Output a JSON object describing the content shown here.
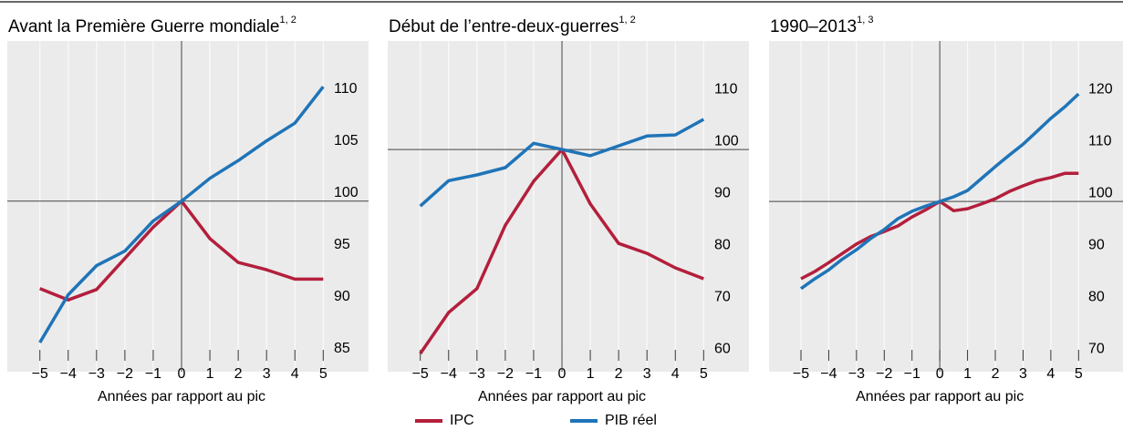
{
  "chart_data": [
    {
      "type": "line",
      "title": "Avant la Première Guerre mondiale",
      "title_note": "1, 2",
      "xlabel": "Années par rapport au pic",
      "x": [
        -5,
        -4,
        -3,
        -2,
        -1,
        0,
        1,
        2,
        3,
        4,
        5
      ],
      "xlim": [
        -6.15,
        6.6
      ],
      "xticks": [
        {
          "value": -5,
          "label": "−5"
        },
        {
          "value": -4,
          "label": "−4"
        },
        {
          "value": -3,
          "label": "−3"
        },
        {
          "value": -2,
          "label": "−2"
        },
        {
          "value": -1,
          "label": "−1"
        },
        0,
        1,
        2,
        3,
        4,
        5
      ],
      "ylim": [
        83.6,
        115.4
      ],
      "yticks": [
        85,
        90,
        95,
        100,
        105,
        110
      ],
      "hline": 100,
      "vline": 0,
      "grid": true,
      "series": [
        {
          "name": "IPC",
          "color": "#b31f3c",
          "values": [
            91.6,
            90.5,
            91.5,
            94.5,
            97.5,
            100,
            96.4,
            94.1,
            93.4,
            92.5,
            92.5
          ]
        },
        {
          "name": "PIB réel",
          "color": "#1f74b8",
          "values": [
            86.4,
            91,
            93.8,
            95.2,
            98.1,
            100,
            102.2,
            103.9,
            105.8,
            107.5,
            111
          ]
        }
      ]
    },
    {
      "type": "line",
      "title": "Début de l’entre-deux-guerres",
      "title_note": "1, 2",
      "xlabel": "Années par rapport au pic",
      "x": [
        -5,
        -4,
        -3,
        -2,
        -1,
        0,
        1,
        2,
        3,
        4,
        5
      ],
      "xlim": [
        -6.15,
        6.6
      ],
      "xticks": [
        {
          "value": -5,
          "label": "−5"
        },
        {
          "value": -4,
          "label": "−4"
        },
        {
          "value": -3,
          "label": "−3"
        },
        {
          "value": -2,
          "label": "−2"
        },
        {
          "value": -1,
          "label": "−1"
        },
        0,
        1,
        2,
        3,
        4,
        5
      ],
      "ylim": [
        57.2,
        120.9
      ],
      "yticks": [
        60,
        70,
        80,
        90,
        100,
        110
      ],
      "hline": 100,
      "vline": 0,
      "grid": true,
      "series": [
        {
          "name": "IPC",
          "color": "#b31f3c",
          "values": [
            60.7,
            68.6,
            73.2,
            85.4,
            93.9,
            100,
            89.5,
            81.9,
            80,
            77.2,
            75.1
          ]
        },
        {
          "name": "PIB réel",
          "color": "#1f74b8",
          "values": [
            89.1,
            94,
            95.1,
            96.5,
            101.2,
            100,
            98.8,
            100.7,
            102.6,
            102.8,
            105.8
          ]
        }
      ]
    },
    {
      "type": "line",
      "title": "1990–2013",
      "title_note": "1, 3",
      "xlabel": "Années par rapport au pic",
      "x": [
        -5,
        -4.5,
        -4,
        -3.5,
        -3,
        -2.5,
        -2,
        -1.5,
        -1,
        -0.5,
        0,
        0.5,
        1,
        1.5,
        2,
        2.5,
        3,
        3.5,
        4,
        4.5,
        5
      ],
      "xlim": [
        -6.15,
        6.6
      ],
      "xticks": [
        {
          "value": -5,
          "label": "−5"
        },
        {
          "value": -4,
          "label": "−4"
        },
        {
          "value": -3,
          "label": "−3"
        },
        {
          "value": -2,
          "label": "−2"
        },
        {
          "value": -1,
          "label": "−1"
        },
        0,
        1,
        2,
        3,
        4,
        5
      ],
      "ylim": [
        67.2,
        130.9
      ],
      "yticks": [
        70,
        80,
        90,
        100,
        110,
        120
      ],
      "hline": 100,
      "vline": 0,
      "grid": true,
      "series": [
        {
          "name": "IPC",
          "color": "#b31f3c",
          "values": [
            85.1,
            86.5,
            88.2,
            90,
            91.8,
            93.2,
            94.2,
            95.3,
            97,
            98.4,
            100,
            98.2,
            98.6,
            99.5,
            100.5,
            101.9,
            103,
            104,
            104.6,
            105.4,
            105.4
          ]
        },
        {
          "name": "PIB réel",
          "color": "#1f74b8",
          "values": [
            83.2,
            85.1,
            86.8,
            88.9,
            90.7,
            92.8,
            94.6,
            96.7,
            98.1,
            99.1,
            100,
            100.9,
            102.1,
            104.4,
            106.7,
            108.9,
            111,
            113.5,
            116,
            118.2,
            120.7
          ]
        }
      ]
    }
  ]
}
